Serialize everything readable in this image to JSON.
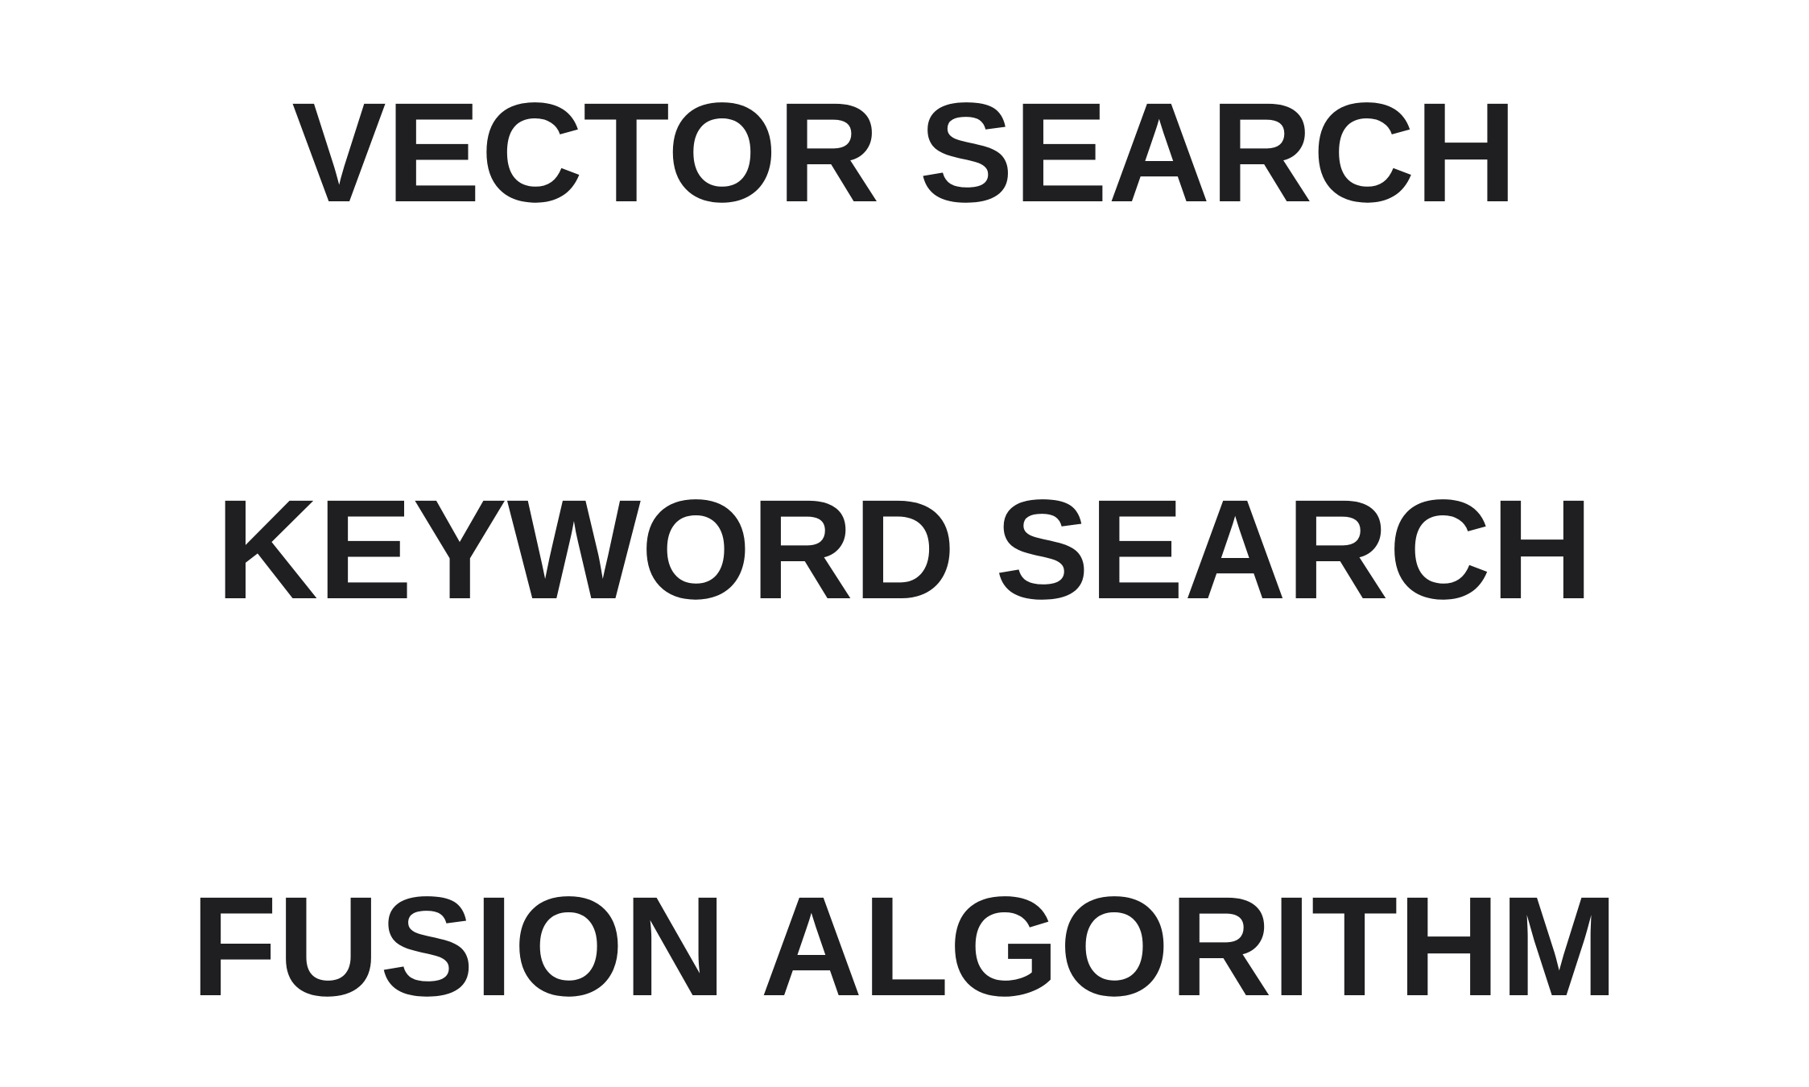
{
  "lines": [
    {
      "text": "VECTOR SEARCH"
    },
    {
      "text": "KEYWORD SEARCH"
    },
    {
      "text": "FUSION ALGORITHM"
    }
  ],
  "colors": {
    "text": "#1f1f21",
    "background": "#ffffff"
  }
}
